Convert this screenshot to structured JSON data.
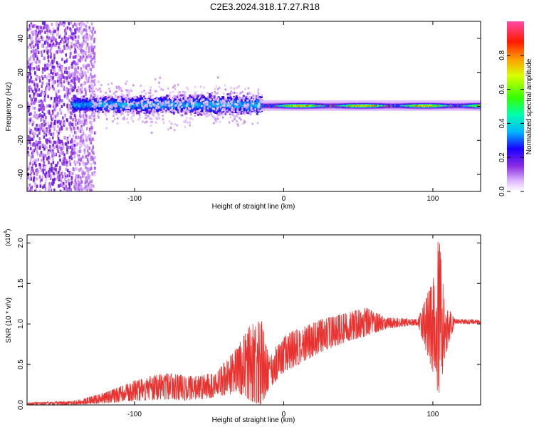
{
  "title": "C2E3.2024.318.17.27.R18",
  "chart_data": [
    {
      "type": "heatmap",
      "xlabel": "Height of straight line (km)",
      "ylabel": "Frequency (Hz)",
      "xlim": [
        -172,
        132
      ],
      "ylim": [
        -50,
        50
      ],
      "xticks": [
        -100,
        0,
        100
      ],
      "yticks": [
        -40,
        -20,
        0,
        20,
        40
      ],
      "xtick_labels": [
        "-100",
        "0",
        "100"
      ],
      "ytick_labels": [
        "-40",
        "-20",
        "0",
        "20",
        "40"
      ],
      "colorbar": {
        "label": "Normalized spectral amplitude",
        "range": [
          0,
          1
        ],
        "ticks": [
          0.0,
          0.2,
          0.4,
          0.6,
          0.8
        ],
        "tick_labels": [
          "0.0",
          "0.2",
          "0.4",
          "0.6",
          "0.8"
        ],
        "colormap": [
          "#ffffff",
          "#cc66ff",
          "#6600cc",
          "#0000ff",
          "#00ffff",
          "#00ff00",
          "#ffff00",
          "#ff8800",
          "#ff0000",
          "#ff66cc"
        ]
      },
      "band_center_hz": [
        {
          "x": -140,
          "y": 3
        },
        {
          "x": -100,
          "y": 2
        },
        {
          "x": -60,
          "y": 1
        },
        {
          "x": -20,
          "y": 0
        },
        {
          "x": -15,
          "y": 0
        },
        {
          "x": 0,
          "y": 0
        },
        {
          "x": 50,
          "y": 0
        },
        {
          "x": 100,
          "y": 0
        },
        {
          "x": 132,
          "y": 1
        }
      ]
    },
    {
      "type": "line",
      "xlabel": "Height of straight line (km)",
      "ylabel": "SNR (10 * v/v)",
      "y_multiplier": "(x10",
      "y_multiplier_exp": "4",
      "y_multiplier_close": ")",
      "xlim": [
        -172,
        132
      ],
      "ylim": [
        0,
        2.1
      ],
      "xticks": [
        -100,
        0,
        100
      ],
      "yticks": [
        0,
        0.5,
        1.0,
        1.5,
        2.0
      ],
      "xtick_labels": [
        "-100",
        "0",
        "100"
      ],
      "ytick_labels": [
        "0.0",
        "0.5",
        "1.0",
        "1.5",
        "2.0"
      ],
      "series": [
        {
          "color": "#e8322f",
          "envelope": [
            {
              "x": -172,
              "lo": 0.0,
              "hi": 0.03
            },
            {
              "x": -140,
              "lo": 0.0,
              "hi": 0.05
            },
            {
              "x": -120,
              "lo": 0.02,
              "hi": 0.15
            },
            {
              "x": -100,
              "lo": 0.05,
              "hi": 0.3
            },
            {
              "x": -80,
              "lo": 0.07,
              "hi": 0.4
            },
            {
              "x": -60,
              "lo": 0.05,
              "hi": 0.35
            },
            {
              "x": -45,
              "lo": 0.1,
              "hi": 0.4
            },
            {
              "x": -30,
              "lo": 0.15,
              "hi": 0.75
            },
            {
              "x": -22,
              "lo": 0.05,
              "hi": 1.0
            },
            {
              "x": -15,
              "lo": 0.0,
              "hi": 1.05
            },
            {
              "x": -10,
              "lo": 0.2,
              "hi": 0.6
            },
            {
              "x": 0,
              "lo": 0.4,
              "hi": 0.85
            },
            {
              "x": 10,
              "lo": 0.5,
              "hi": 0.95
            },
            {
              "x": 25,
              "lo": 0.65,
              "hi": 1.05
            },
            {
              "x": 45,
              "lo": 0.8,
              "hi": 1.15
            },
            {
              "x": 55,
              "lo": 0.85,
              "hi": 1.2
            },
            {
              "x": 70,
              "lo": 0.95,
              "hi": 1.08
            },
            {
              "x": 90,
              "lo": 0.98,
              "hi": 1.06
            },
            {
              "x": 100,
              "lo": 0.4,
              "hi": 1.55
            },
            {
              "x": 104,
              "lo": 0.05,
              "hi": 2.1
            },
            {
              "x": 108,
              "lo": 0.6,
              "hi": 1.25
            },
            {
              "x": 115,
              "lo": 1.0,
              "hi": 1.06
            },
            {
              "x": 132,
              "lo": 1.0,
              "hi": 1.05
            }
          ]
        }
      ]
    }
  ]
}
